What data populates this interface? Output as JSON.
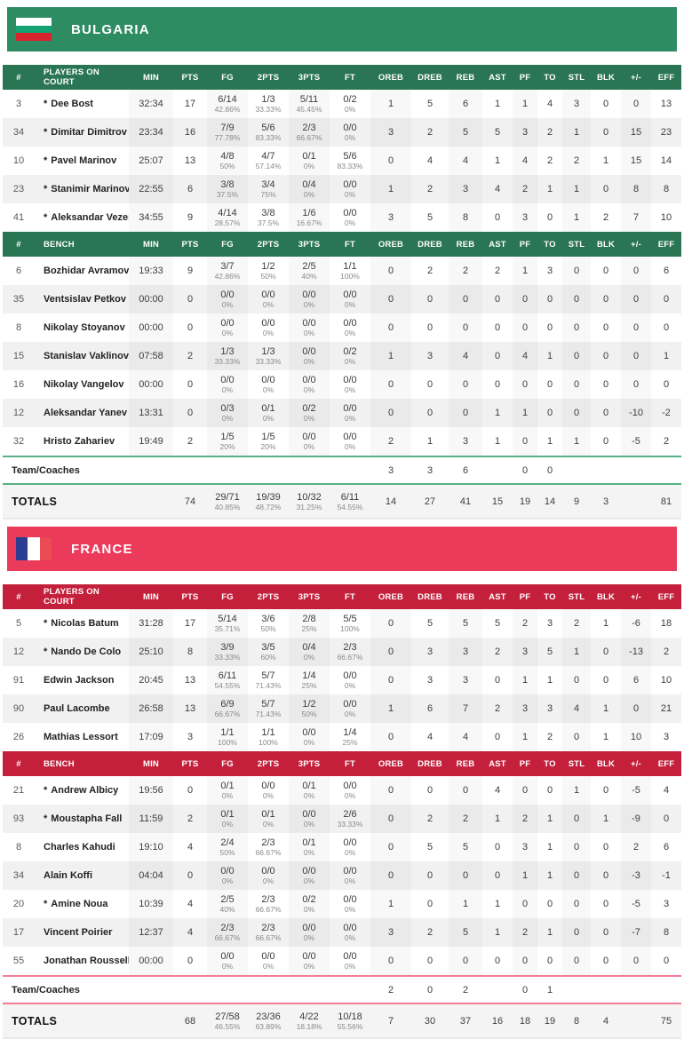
{
  "columns": [
    "#",
    "PLAYERS ON COURT",
    "MIN",
    "PTS",
    "FG",
    "2PTS",
    "3PTS",
    "FT",
    "OREB",
    "DREB",
    "REB",
    "AST",
    "PF",
    "TO",
    "STL",
    "BLK",
    "+/-",
    "EFF"
  ],
  "labels": {
    "bench": "BENCH",
    "team_coaches": "Team/Coaches",
    "totals": "TOTALS",
    "starter_mark": "*"
  },
  "teams": [
    {
      "name": "BULGARIA",
      "colors": {
        "banner": "#2E8C63",
        "header": "#2A7553",
        "line": "#57B186"
      },
      "flag": {
        "direction": "horizontal",
        "stripes": [
          "#FFFFFF",
          "#15A272",
          "#D7242F"
        ]
      },
      "on_court": [
        {
          "num": "3",
          "starter": true,
          "name": "Dee Bost",
          "min": "32:34",
          "pts": "17",
          "fg": "6/14",
          "fg_pct": "42.86%",
          "p2": "1/3",
          "p2_pct": "33.33%",
          "p3": "5/11",
          "p3_pct": "45.45%",
          "ft": "0/2",
          "ft_pct": "0%",
          "oreb": "1",
          "dreb": "5",
          "reb": "6",
          "ast": "1",
          "pf": "1",
          "to": "4",
          "stl": "3",
          "blk": "0",
          "pm": "0",
          "eff": "13"
        },
        {
          "num": "34",
          "starter": true,
          "name": "Dimitar Dimitrov",
          "min": "23:34",
          "pts": "16",
          "fg": "7/9",
          "fg_pct": "77.78%",
          "p2": "5/6",
          "p2_pct": "83.33%",
          "p3": "2/3",
          "p3_pct": "66.67%",
          "ft": "0/0",
          "ft_pct": "0%",
          "oreb": "3",
          "dreb": "2",
          "reb": "5",
          "ast": "5",
          "pf": "3",
          "to": "2",
          "stl": "1",
          "blk": "0",
          "pm": "15",
          "eff": "23"
        },
        {
          "num": "10",
          "starter": true,
          "name": "Pavel Marinov",
          "min": "25:07",
          "pts": "13",
          "fg": "4/8",
          "fg_pct": "50%",
          "p2": "4/7",
          "p2_pct": "57.14%",
          "p3": "0/1",
          "p3_pct": "0%",
          "ft": "5/6",
          "ft_pct": "83.33%",
          "oreb": "0",
          "dreb": "4",
          "reb": "4",
          "ast": "1",
          "pf": "4",
          "to": "2",
          "stl": "2",
          "blk": "1",
          "pm": "15",
          "eff": "14"
        },
        {
          "num": "23",
          "starter": true,
          "name": "Stanimir Marinov",
          "min": "22:55",
          "pts": "6",
          "fg": "3/8",
          "fg_pct": "37.5%",
          "p2": "3/4",
          "p2_pct": "75%",
          "p3": "0/4",
          "p3_pct": "0%",
          "ft": "0/0",
          "ft_pct": "0%",
          "oreb": "1",
          "dreb": "2",
          "reb": "3",
          "ast": "4",
          "pf": "2",
          "to": "1",
          "stl": "1",
          "blk": "0",
          "pm": "8",
          "eff": "8"
        },
        {
          "num": "41",
          "starter": true,
          "name": "Aleksandar Vezenkov",
          "min": "34:55",
          "pts": "9",
          "fg": "4/14",
          "fg_pct": "28.57%",
          "p2": "3/8",
          "p2_pct": "37.5%",
          "p3": "1/6",
          "p3_pct": "16.67%",
          "ft": "0/0",
          "ft_pct": "0%",
          "oreb": "3",
          "dreb": "5",
          "reb": "8",
          "ast": "0",
          "pf": "3",
          "to": "0",
          "stl": "1",
          "blk": "2",
          "pm": "7",
          "eff": "10"
        }
      ],
      "bench": [
        {
          "num": "6",
          "starter": false,
          "name": "Bozhidar Avramov",
          "min": "19:33",
          "pts": "9",
          "fg": "3/7",
          "fg_pct": "42.86%",
          "p2": "1/2",
          "p2_pct": "50%",
          "p3": "2/5",
          "p3_pct": "40%",
          "ft": "1/1",
          "ft_pct": "100%",
          "oreb": "0",
          "dreb": "2",
          "reb": "2",
          "ast": "2",
          "pf": "1",
          "to": "3",
          "stl": "0",
          "blk": "0",
          "pm": "0",
          "eff": "6"
        },
        {
          "num": "35",
          "starter": false,
          "name": "Ventsislav Petkov",
          "min": "00:00",
          "pts": "0",
          "fg": "0/0",
          "fg_pct": "0%",
          "p2": "0/0",
          "p2_pct": "0%",
          "p3": "0/0",
          "p3_pct": "0%",
          "ft": "0/0",
          "ft_pct": "0%",
          "oreb": "0",
          "dreb": "0",
          "reb": "0",
          "ast": "0",
          "pf": "0",
          "to": "0",
          "stl": "0",
          "blk": "0",
          "pm": "0",
          "eff": "0"
        },
        {
          "num": "8",
          "starter": false,
          "name": "Nikolay Stoyanov",
          "min": "00:00",
          "pts": "0",
          "fg": "0/0",
          "fg_pct": "0%",
          "p2": "0/0",
          "p2_pct": "0%",
          "p3": "0/0",
          "p3_pct": "0%",
          "ft": "0/0",
          "ft_pct": "0%",
          "oreb": "0",
          "dreb": "0",
          "reb": "0",
          "ast": "0",
          "pf": "0",
          "to": "0",
          "stl": "0",
          "blk": "0",
          "pm": "0",
          "eff": "0"
        },
        {
          "num": "15",
          "starter": false,
          "name": "Stanislav Vaklinov",
          "min": "07:58",
          "pts": "2",
          "fg": "1/3",
          "fg_pct": "33.33%",
          "p2": "1/3",
          "p2_pct": "33.33%",
          "p3": "0/0",
          "p3_pct": "0%",
          "ft": "0/2",
          "ft_pct": "0%",
          "oreb": "1",
          "dreb": "3",
          "reb": "4",
          "ast": "0",
          "pf": "4",
          "to": "1",
          "stl": "0",
          "blk": "0",
          "pm": "0",
          "eff": "1"
        },
        {
          "num": "16",
          "starter": false,
          "name": "Nikolay Vangelov",
          "min": "00:00",
          "pts": "0",
          "fg": "0/0",
          "fg_pct": "0%",
          "p2": "0/0",
          "p2_pct": "0%",
          "p3": "0/0",
          "p3_pct": "0%",
          "ft": "0/0",
          "ft_pct": "0%",
          "oreb": "0",
          "dreb": "0",
          "reb": "0",
          "ast": "0",
          "pf": "0",
          "to": "0",
          "stl": "0",
          "blk": "0",
          "pm": "0",
          "eff": "0"
        },
        {
          "num": "12",
          "starter": false,
          "name": "Aleksandar Yanev",
          "min": "13:31",
          "pts": "0",
          "fg": "0/3",
          "fg_pct": "0%",
          "p2": "0/1",
          "p2_pct": "0%",
          "p3": "0/2",
          "p3_pct": "0%",
          "ft": "0/0",
          "ft_pct": "0%",
          "oreb": "0",
          "dreb": "0",
          "reb": "0",
          "ast": "1",
          "pf": "1",
          "to": "0",
          "stl": "0",
          "blk": "0",
          "pm": "-10",
          "eff": "-2"
        },
        {
          "num": "32",
          "starter": false,
          "name": "Hristo Zahariev",
          "min": "19:49",
          "pts": "2",
          "fg": "1/5",
          "fg_pct": "20%",
          "p2": "1/5",
          "p2_pct": "20%",
          "p3": "0/0",
          "p3_pct": "0%",
          "ft": "0/0",
          "ft_pct": "0%",
          "oreb": "2",
          "dreb": "1",
          "reb": "3",
          "ast": "1",
          "pf": "0",
          "to": "1",
          "stl": "1",
          "blk": "0",
          "pm": "-5",
          "eff": "2"
        }
      ],
      "team_coaches": {
        "oreb": "3",
        "dreb": "3",
        "reb": "6",
        "ast": "",
        "pf": "0",
        "to": "0"
      },
      "totals": {
        "pts": "74",
        "fg": "29/71",
        "fg_pct": "40.85%",
        "p2": "19/39",
        "p2_pct": "48.72%",
        "p3": "10/32",
        "p3_pct": "31.25%",
        "ft": "6/11",
        "ft_pct": "54.55%",
        "oreb": "14",
        "dreb": "27",
        "reb": "41",
        "ast": "15",
        "pf": "19",
        "to": "14",
        "stl": "9",
        "blk": "3",
        "pm": "",
        "eff": "81"
      }
    },
    {
      "name": "FRANCE",
      "colors": {
        "banner": "#EC3A5B",
        "header": "#C4203C",
        "line": "#F27D97"
      },
      "flag": {
        "direction": "vertical",
        "stripes": [
          "#2C3C90",
          "#FFFFFF",
          "#EA4A54"
        ]
      },
      "on_court": [
        {
          "num": "5",
          "starter": true,
          "name": "Nicolas Batum",
          "min": "31:28",
          "pts": "17",
          "fg": "5/14",
          "fg_pct": "35.71%",
          "p2": "3/6",
          "p2_pct": "50%",
          "p3": "2/8",
          "p3_pct": "25%",
          "ft": "5/5",
          "ft_pct": "100%",
          "oreb": "0",
          "dreb": "5",
          "reb": "5",
          "ast": "5",
          "pf": "2",
          "to": "3",
          "stl": "2",
          "blk": "1",
          "pm": "-6",
          "eff": "18"
        },
        {
          "num": "12",
          "starter": true,
          "name": "Nando De Colo",
          "min": "25:10",
          "pts": "8",
          "fg": "3/9",
          "fg_pct": "33.33%",
          "p2": "3/5",
          "p2_pct": "60%",
          "p3": "0/4",
          "p3_pct": "0%",
          "ft": "2/3",
          "ft_pct": "66.67%",
          "oreb": "0",
          "dreb": "3",
          "reb": "3",
          "ast": "2",
          "pf": "3",
          "to": "5",
          "stl": "1",
          "blk": "0",
          "pm": "-13",
          "eff": "2"
        },
        {
          "num": "91",
          "starter": false,
          "name": "Edwin Jackson",
          "min": "20:45",
          "pts": "13",
          "fg": "6/11",
          "fg_pct": "54.55%",
          "p2": "5/7",
          "p2_pct": "71.43%",
          "p3": "1/4",
          "p3_pct": "25%",
          "ft": "0/0",
          "ft_pct": "0%",
          "oreb": "0",
          "dreb": "3",
          "reb": "3",
          "ast": "0",
          "pf": "1",
          "to": "1",
          "stl": "0",
          "blk": "0",
          "pm": "6",
          "eff": "10"
        },
        {
          "num": "90",
          "starter": false,
          "name": "Paul Lacombe",
          "min": "26:58",
          "pts": "13",
          "fg": "6/9",
          "fg_pct": "66.67%",
          "p2": "5/7",
          "p2_pct": "71.43%",
          "p3": "1/2",
          "p3_pct": "50%",
          "ft": "0/0",
          "ft_pct": "0%",
          "oreb": "1",
          "dreb": "6",
          "reb": "7",
          "ast": "2",
          "pf": "3",
          "to": "3",
          "stl": "4",
          "blk": "1",
          "pm": "0",
          "eff": "21"
        },
        {
          "num": "26",
          "starter": false,
          "name": "Mathias Lessort",
          "min": "17:09",
          "pts": "3",
          "fg": "1/1",
          "fg_pct": "100%",
          "p2": "1/1",
          "p2_pct": "100%",
          "p3": "0/0",
          "p3_pct": "0%",
          "ft": "1/4",
          "ft_pct": "25%",
          "oreb": "0",
          "dreb": "4",
          "reb": "4",
          "ast": "0",
          "pf": "1",
          "to": "2",
          "stl": "0",
          "blk": "1",
          "pm": "10",
          "eff": "3"
        }
      ],
      "bench": [
        {
          "num": "21",
          "starter": true,
          "name": "Andrew Albicy",
          "min": "19:56",
          "pts": "0",
          "fg": "0/1",
          "fg_pct": "0%",
          "p2": "0/0",
          "p2_pct": "0%",
          "p3": "0/1",
          "p3_pct": "0%",
          "ft": "0/0",
          "ft_pct": "0%",
          "oreb": "0",
          "dreb": "0",
          "reb": "0",
          "ast": "4",
          "pf": "0",
          "to": "0",
          "stl": "1",
          "blk": "0",
          "pm": "-5",
          "eff": "4"
        },
        {
          "num": "93",
          "starter": true,
          "name": "Moustapha Fall",
          "min": "11:59",
          "pts": "2",
          "fg": "0/1",
          "fg_pct": "0%",
          "p2": "0/1",
          "p2_pct": "0%",
          "p3": "0/0",
          "p3_pct": "0%",
          "ft": "2/6",
          "ft_pct": "33.33%",
          "oreb": "0",
          "dreb": "2",
          "reb": "2",
          "ast": "1",
          "pf": "2",
          "to": "1",
          "stl": "0",
          "blk": "1",
          "pm": "-9",
          "eff": "0"
        },
        {
          "num": "8",
          "starter": false,
          "name": "Charles Kahudi",
          "min": "19:10",
          "pts": "4",
          "fg": "2/4",
          "fg_pct": "50%",
          "p2": "2/3",
          "p2_pct": "66.67%",
          "p3": "0/1",
          "p3_pct": "0%",
          "ft": "0/0",
          "ft_pct": "0%",
          "oreb": "0",
          "dreb": "5",
          "reb": "5",
          "ast": "0",
          "pf": "3",
          "to": "1",
          "stl": "0",
          "blk": "0",
          "pm": "2",
          "eff": "6"
        },
        {
          "num": "34",
          "starter": false,
          "name": "Alain Koffi",
          "min": "04:04",
          "pts": "0",
          "fg": "0/0",
          "fg_pct": "0%",
          "p2": "0/0",
          "p2_pct": "0%",
          "p3": "0/0",
          "p3_pct": "0%",
          "ft": "0/0",
          "ft_pct": "0%",
          "oreb": "0",
          "dreb": "0",
          "reb": "0",
          "ast": "0",
          "pf": "1",
          "to": "1",
          "stl": "0",
          "blk": "0",
          "pm": "-3",
          "eff": "-1"
        },
        {
          "num": "20",
          "starter": true,
          "name": "Amine Noua",
          "min": "10:39",
          "pts": "4",
          "fg": "2/5",
          "fg_pct": "40%",
          "p2": "2/3",
          "p2_pct": "66.67%",
          "p3": "0/2",
          "p3_pct": "0%",
          "ft": "0/0",
          "ft_pct": "0%",
          "oreb": "1",
          "dreb": "0",
          "reb": "1",
          "ast": "1",
          "pf": "0",
          "to": "0",
          "stl": "0",
          "blk": "0",
          "pm": "-5",
          "eff": "3"
        },
        {
          "num": "17",
          "starter": false,
          "name": "Vincent Poirier",
          "min": "12:37",
          "pts": "4",
          "fg": "2/3",
          "fg_pct": "66.67%",
          "p2": "2/3",
          "p2_pct": "66.67%",
          "p3": "0/0",
          "p3_pct": "0%",
          "ft": "0/0",
          "ft_pct": "0%",
          "oreb": "3",
          "dreb": "2",
          "reb": "5",
          "ast": "1",
          "pf": "2",
          "to": "1",
          "stl": "0",
          "blk": "0",
          "pm": "-7",
          "eff": "8"
        },
        {
          "num": "55",
          "starter": false,
          "name": "Jonathan Rousselle",
          "min": "00:00",
          "pts": "0",
          "fg": "0/0",
          "fg_pct": "0%",
          "p2": "0/0",
          "p2_pct": "0%",
          "p3": "0/0",
          "p3_pct": "0%",
          "ft": "0/0",
          "ft_pct": "0%",
          "oreb": "0",
          "dreb": "0",
          "reb": "0",
          "ast": "0",
          "pf": "0",
          "to": "0",
          "stl": "0",
          "blk": "0",
          "pm": "0",
          "eff": "0"
        }
      ],
      "team_coaches": {
        "oreb": "2",
        "dreb": "0",
        "reb": "2",
        "ast": "",
        "pf": "0",
        "to": "1"
      },
      "totals": {
        "pts": "68",
        "fg": "27/58",
        "fg_pct": "46.55%",
        "p2": "23/36",
        "p2_pct": "63.89%",
        "p3": "4/22",
        "p3_pct": "18.18%",
        "ft": "10/18",
        "ft_pct": "55.56%",
        "oreb": "7",
        "dreb": "30",
        "reb": "37",
        "ast": "16",
        "pf": "18",
        "to": "19",
        "stl": "8",
        "blk": "4",
        "pm": "",
        "eff": "75"
      }
    }
  ]
}
